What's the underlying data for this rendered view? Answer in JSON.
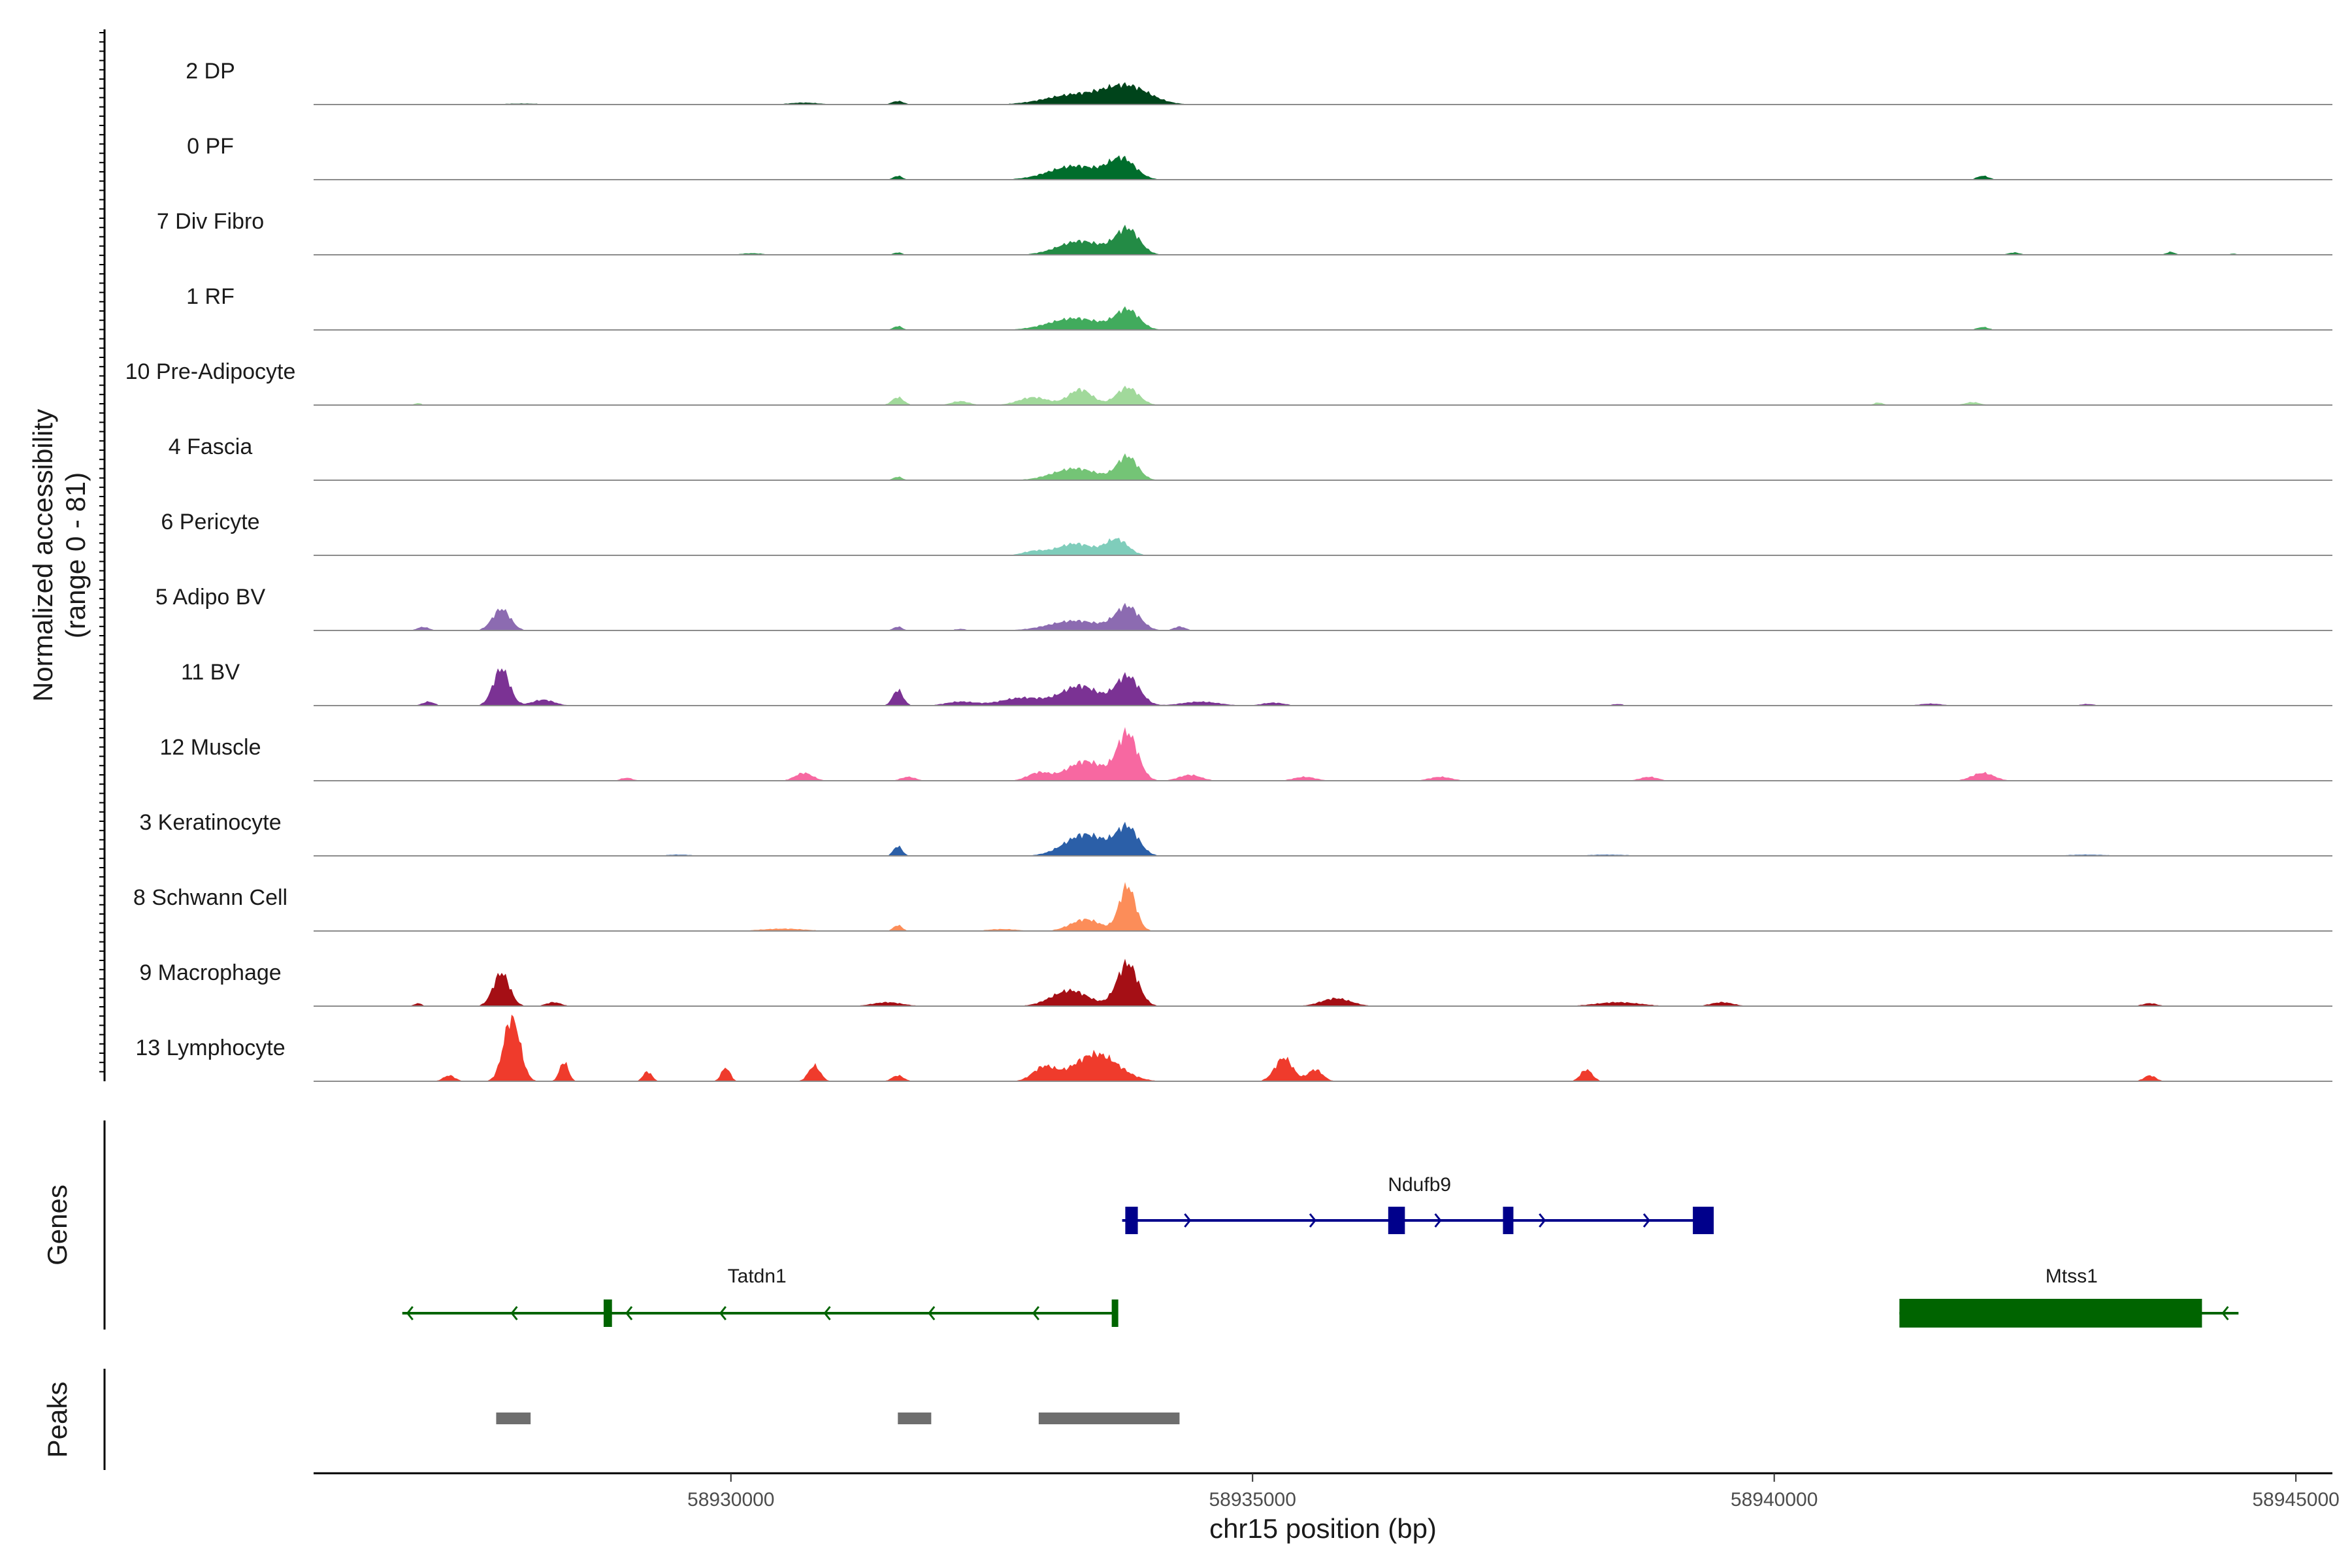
{
  "chart_data": {
    "type": "genome-coverage",
    "y_axis_title": "Normalized accessibility",
    "y_axis_range_label": "(range 0 - 81)",
    "y_range": [
      0,
      81
    ],
    "x_axis_title": "chr15 position (bp)",
    "x_range": [
      58926000,
      58945350
    ],
    "x_ticks": [
      58930000,
      58935000,
      58940000,
      58945000
    ],
    "tracks": [
      {
        "label": "2 DP",
        "color": "#00441b",
        "peaks": [
          [
            58933800,
            9,
            300
          ],
          [
            58933300,
            5,
            400
          ],
          [
            58931600,
            1.8,
            80
          ],
          [
            58930700,
            1,
            200
          ],
          [
            58928000,
            0.5,
            300
          ]
        ]
      },
      {
        "label": "0 PF",
        "color": "#006d2c",
        "peaks": [
          [
            58933750,
            10,
            180
          ],
          [
            58933300,
            7,
            350
          ],
          [
            58931600,
            2,
            60
          ],
          [
            58942000,
            2,
            80
          ]
        ]
      },
      {
        "label": "7 Div Fibro",
        "color": "#238b45",
        "peaks": [
          [
            58933800,
            13,
            160
          ],
          [
            58933350,
            7,
            300
          ],
          [
            58931600,
            1.2,
            60
          ],
          [
            58930200,
            0.8,
            150
          ],
          [
            58942300,
            1.2,
            80
          ],
          [
            58943800,
            1.5,
            60
          ],
          [
            58944400,
            0.6,
            60
          ]
        ]
      },
      {
        "label": "1 RF",
        "color": "#41ab5d",
        "peaks": [
          [
            58933800,
            10,
            160
          ],
          [
            58933300,
            6,
            350
          ],
          [
            58931600,
            2,
            60
          ],
          [
            58942000,
            1.5,
            80
          ]
        ]
      },
      {
        "label": "10 Pre-Adipocyte",
        "color": "#a1d99b",
        "peaks": [
          [
            58933800,
            9,
            150
          ],
          [
            58933350,
            8,
            160
          ],
          [
            58932900,
            4,
            200
          ],
          [
            58931600,
            4,
            80
          ],
          [
            58932200,
            2,
            120
          ],
          [
            58927000,
            1,
            50
          ],
          [
            58941000,
            1.3,
            60
          ],
          [
            58941900,
            1.5,
            100
          ]
        ]
      },
      {
        "label": "4 Fascia",
        "color": "#74c476",
        "peaks": [
          [
            58933800,
            12,
            140
          ],
          [
            58933300,
            6,
            300
          ],
          [
            58931600,
            1.8,
            60
          ]
        ]
      },
      {
        "label": "6 Pericyte",
        "color": "#7fcdbb",
        "peaks": [
          [
            58933700,
            8,
            150
          ],
          [
            58933300,
            6,
            250
          ],
          [
            58932900,
            2,
            150
          ]
        ]
      },
      {
        "label": "5 Adipo BV",
        "color": "#8c6bb1",
        "peaks": [
          [
            58927800,
            11,
            120
          ],
          [
            58927050,
            1.8,
            80
          ],
          [
            58933800,
            12,
            160
          ],
          [
            58933300,
            5,
            350
          ],
          [
            58931600,
            2,
            60
          ],
          [
            58934300,
            2,
            80
          ],
          [
            58932200,
            0.8,
            80
          ]
        ]
      },
      {
        "label": "11 BV",
        "color": "#7b3294",
        "peaks": [
          [
            58927800,
            19,
            110
          ],
          [
            58928200,
            3,
            150
          ],
          [
            58927100,
            2,
            80
          ],
          [
            58931600,
            8,
            70
          ],
          [
            58933800,
            15,
            160
          ],
          [
            58933350,
            10,
            250
          ],
          [
            58932800,
            4,
            300
          ],
          [
            58932200,
            2,
            200
          ],
          [
            58934500,
            2,
            250
          ],
          [
            58935200,
            1.5,
            150
          ],
          [
            58938500,
            0.8,
            80
          ],
          [
            58941500,
            1,
            150
          ],
          [
            58943000,
            0.8,
            100
          ]
        ]
      },
      {
        "label": "12 Muscle",
        "color": "#f768a1",
        "peaks": [
          [
            58933800,
            24,
            140
          ],
          [
            58933400,
            10,
            250
          ],
          [
            58932950,
            4,
            150
          ],
          [
            58930700,
            4,
            120
          ],
          [
            58934400,
            3,
            150
          ],
          [
            58935500,
            2,
            150
          ],
          [
            58936800,
            2,
            150
          ],
          [
            58938800,
            2,
            120
          ],
          [
            58942000,
            4,
            150
          ],
          [
            58929000,
            1.5,
            80
          ],
          [
            58931700,
            2,
            100
          ]
        ]
      },
      {
        "label": "3 Keratinocyte",
        "color": "#2b5fa8",
        "peaks": [
          [
            58933800,
            14,
            150
          ],
          [
            58933400,
            11,
            280
          ],
          [
            58931600,
            5,
            60
          ],
          [
            58929500,
            0.6,
            200
          ],
          [
            58938400,
            0.6,
            300
          ],
          [
            58943000,
            0.6,
            300
          ]
        ]
      },
      {
        "label": "8 Schwann Cell",
        "color": "#fc8d59",
        "peaks": [
          [
            58933800,
            23,
            110
          ],
          [
            58933400,
            6,
            200
          ],
          [
            58931600,
            3,
            60
          ],
          [
            58930500,
            1.2,
            300
          ],
          [
            58932600,
            1,
            200
          ]
        ]
      },
      {
        "label": "9 Macrophage",
        "color": "#a50f15",
        "peaks": [
          [
            58927800,
            17,
            110
          ],
          [
            58933800,
            22,
            140
          ],
          [
            58933250,
            8,
            250
          ],
          [
            58928300,
            2,
            100
          ],
          [
            58931500,
            2,
            200
          ],
          [
            58935800,
            4,
            200
          ],
          [
            58938500,
            2,
            300
          ],
          [
            58939500,
            2,
            150
          ],
          [
            58943600,
            1.5,
            100
          ],
          [
            58927000,
            1.5,
            50
          ]
        ]
      },
      {
        "label": "13 Lymphocyte",
        "color": "#ef3b2c",
        "peaks": [
          [
            58927900,
            33,
            110
          ],
          [
            58928400,
            10,
            60
          ],
          [
            58933500,
            14,
            300
          ],
          [
            58933000,
            7,
            150
          ],
          [
            58935300,
            12,
            120
          ],
          [
            58935600,
            6,
            100
          ],
          [
            58938200,
            6,
            80
          ],
          [
            58929950,
            7,
            60
          ],
          [
            58930800,
            8,
            80
          ],
          [
            58929200,
            5,
            60
          ],
          [
            58927300,
            3,
            80
          ],
          [
            58931600,
            3,
            80
          ],
          [
            58943600,
            3,
            80
          ]
        ]
      }
    ],
    "genes": [
      {
        "name": "Ndufb9",
        "strand": "+",
        "color": "#00008b",
        "start": 58933750,
        "end": 58939400,
        "exons": [
          [
            58933780,
            58933900
          ],
          [
            58936300,
            58936460
          ],
          [
            58937400,
            58937500
          ],
          [
            58939220,
            58939420
          ]
        ],
        "direction_marks": [
          58934400,
          58935600,
          58936800,
          58937800,
          58938800
        ]
      },
      {
        "name": "Tatdn1",
        "strand": "-",
        "color": "#006400",
        "start": 58926850,
        "end": 58933700,
        "exons": [
          [
            58928780,
            58928860
          ],
          [
            58933650,
            58933700
          ]
        ],
        "direction_marks": [
          58926900,
          58927900,
          58929000,
          58929900,
          58930900,
          58931900,
          58932900
        ]
      },
      {
        "name": "Mtss1",
        "strand": "-",
        "color": "#006400",
        "start": 58941200,
        "end": 58944450,
        "exons": [
          [
            58941200,
            58944100
          ]
        ],
        "direction_marks": [
          58944300
        ]
      }
    ],
    "peaks_track": [
      [
        58927750,
        58928080
      ],
      [
        58931600,
        58931920
      ],
      [
        58932950,
        58934300
      ]
    ],
    "genes_label": "Genes",
    "peaks_label": "Peaks"
  }
}
